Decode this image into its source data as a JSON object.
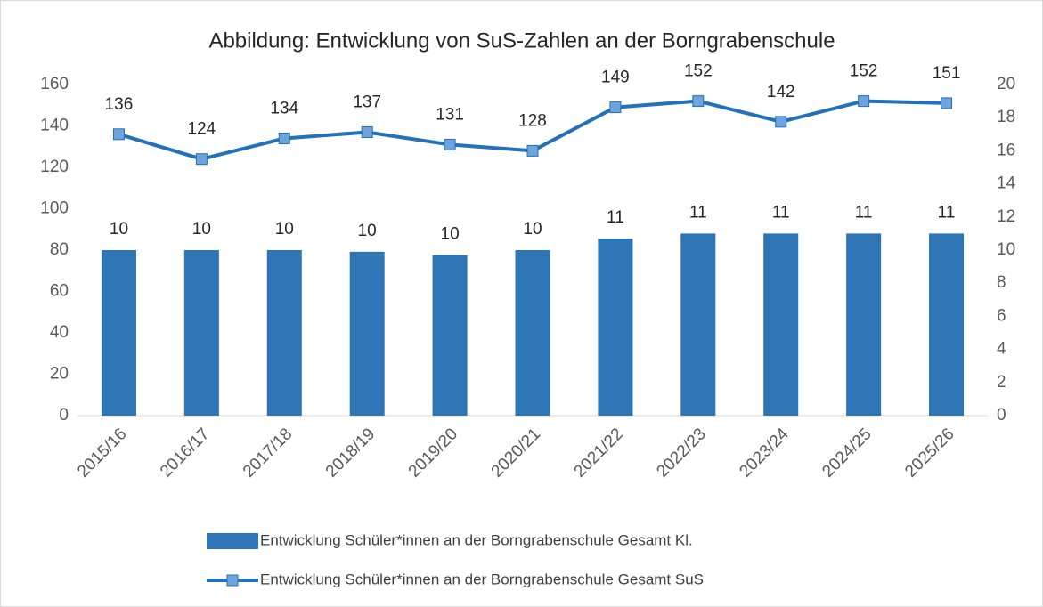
{
  "chart_data": {
    "type": "bar",
    "title": "Abbildung: Entwicklung von SuS-Zahlen an der Borngrabenschule",
    "categories": [
      "2015/16",
      "2016/17",
      "2017/18",
      "2018/19",
      "2019/20",
      "2020/21",
      "2021/22",
      "2022/23",
      "2023/24",
      "2024/25",
      "2025/26"
    ],
    "series": [
      {
        "name": "Entwicklung Schüler*innen an der Borngrabenschule Gesamt Kl.",
        "type": "bar",
        "axis": "y2",
        "color": "#2e75b6",
        "values": [
          10,
          10,
          10,
          9.9,
          9.7,
          10,
          10.7,
          11,
          11,
          11,
          11
        ],
        "value_labels": [
          "10",
          "10",
          "10",
          "10",
          "10",
          "10",
          "11",
          "11",
          "11",
          "11",
          "11"
        ]
      },
      {
        "name": "Entwicklung Schüler*innen an der Borngrabenschule Gesamt SuS",
        "type": "line",
        "color": "#2271b9",
        "marker_color": "#6fa3dc",
        "values": [
          136,
          124,
          134,
          137,
          131,
          128,
          149,
          152,
          142,
          152,
          151
        ]
      }
    ],
    "ylim": [
      0,
      160
    ],
    "yticks": [
      0,
      20,
      40,
      60,
      80,
      100,
      120,
      140,
      160
    ],
    "y2lim": [
      0,
      20
    ],
    "y2ticks": [
      0,
      2,
      4,
      6,
      8,
      10,
      12,
      14,
      16,
      18,
      20
    ],
    "grid": false
  }
}
